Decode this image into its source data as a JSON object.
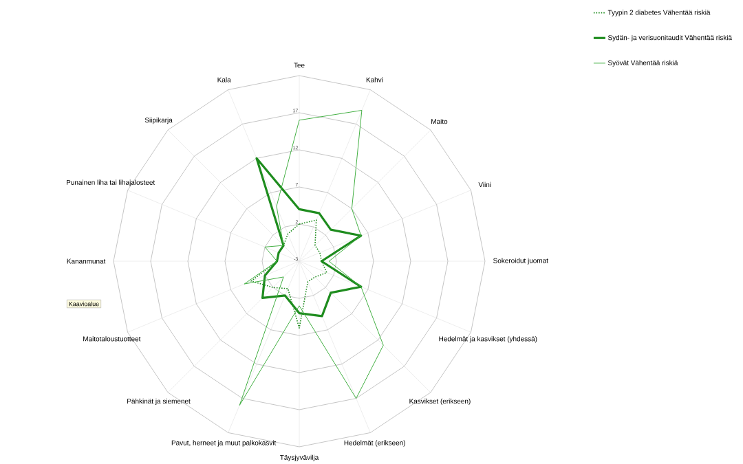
{
  "chart_data": {
    "type": "radar",
    "categories": [
      "Tee",
      "Kahvi",
      "Maito",
      "Viini",
      "Sokeroidut juomat",
      "Hedelmät ja kasvikset (yhdessä)",
      "Kasvikset (erikseen)",
      "Hedelmät (erikseen)",
      "Täysjyvävilja",
      "Pavut, herneet ja muut palkokasvit",
      "Pähkinät ja siemenet",
      "Maitotaloustuotteet",
      "Kananmunat",
      "Punainen liha tai lihajalosteet",
      "Siipikarja",
      "Kala"
    ],
    "series": [
      {
        "name": "Tyypin 2 diabetes Vähentää riskiä",
        "color": "#1e8c1e",
        "line_style": "dotted",
        "values": [
          2,
          3,
          0,
          0,
          0,
          1,
          0,
          0,
          6,
          1,
          2,
          4,
          0,
          0,
          0,
          1
        ]
      },
      {
        "name": "Sydän- ja verisuonitaudit Vähentää riskiä",
        "color": "#1e8c1e",
        "line_style": "solid",
        "values": [
          4,
          4,
          3,
          6,
          0,
          6,
          3,
          5,
          4,
          2,
          4,
          2,
          0,
          0,
          0,
          12
        ]
      },
      {
        "name": "Syövät Vähentää riskiä",
        "color": "#43b043",
        "line_style": "solid",
        "values": [
          16,
          19,
          7,
          6,
          1,
          6,
          13,
          17,
          3,
          18,
          0,
          5,
          0,
          2,
          0,
          5
        ]
      }
    ],
    "ylim": [
      -3,
      22
    ],
    "yticks": [
      -3,
      2,
      7,
      12,
      17
    ],
    "grid": true,
    "legend": "top right",
    "marker": "none",
    "annotations": [
      "Kaavioalue"
    ]
  }
}
